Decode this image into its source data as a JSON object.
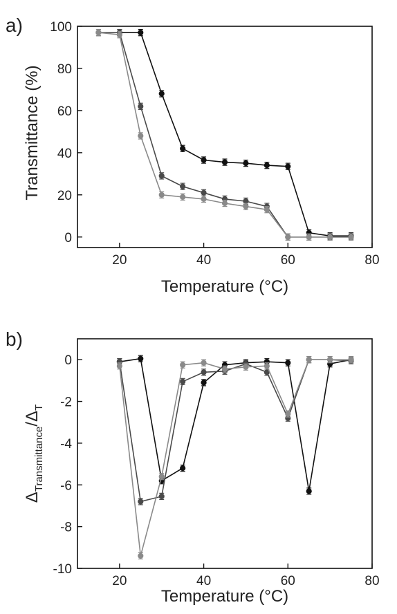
{
  "chart_data": [
    {
      "panel": "a)",
      "type": "line",
      "xlabel": "Temperature (°C)",
      "ylabel": "Transmittance (%)",
      "xlim": [
        10,
        80
      ],
      "ylim": [
        -5,
        100
      ],
      "xticks": [
        20,
        40,
        60,
        80
      ],
      "yticks": [
        0,
        20,
        40,
        60,
        80,
        100
      ],
      "x": [
        15,
        20,
        25,
        30,
        35,
        40,
        45,
        50,
        55,
        60,
        65,
        70,
        75
      ],
      "grid": false,
      "legend": "none",
      "series": [
        {
          "color": "#111111",
          "x": [
            20,
            25,
            30,
            35,
            40,
            45,
            50,
            55,
            60,
            65,
            70,
            75
          ],
          "values": [
            97,
            97,
            68,
            42,
            36.5,
            35.5,
            35,
            34,
            33.5,
            2,
            0.5,
            0.5
          ],
          "err": [
            1.5,
            1.5,
            1.5,
            1.5,
            1.5,
            1.5,
            1.5,
            1.5,
            1.5,
            1.5,
            1.5,
            1.5
          ]
        },
        {
          "color": "#4a4a4a",
          "x": [
            15,
            20,
            25,
            30,
            35,
            40,
            45,
            50,
            55,
            60,
            65,
            70,
            75
          ],
          "values": [
            97,
            97,
            62,
            29,
            24,
            21,
            18,
            17,
            14.5,
            0,
            0,
            0,
            0
          ],
          "err": [
            1.5,
            1.5,
            1.5,
            1.5,
            1.5,
            1.5,
            1.5,
            1.5,
            1.5,
            1.5,
            1.5,
            1.5,
            1.5
          ]
        },
        {
          "color": "#8a8a8a",
          "x": [
            15,
            20,
            25,
            30,
            35,
            40,
            45,
            50,
            55,
            60,
            65,
            70,
            75
          ],
          "values": [
            97,
            96,
            48,
            20,
            19,
            18,
            16,
            14.5,
            13,
            0,
            0,
            0,
            0
          ],
          "err": [
            1.5,
            1.5,
            1.5,
            1.5,
            1.5,
            1.5,
            1.5,
            1.5,
            1.5,
            1.5,
            1.5,
            1.5,
            1.5
          ]
        }
      ]
    },
    {
      "panel": "b)",
      "type": "line",
      "xlabel": "Temperature (°C)",
      "ylabel_main": "Δ",
      "ylabel_sub1": "Transmittance",
      "ylabel_mid": "/Δ",
      "ylabel_sub2": "T",
      "xlim": [
        10,
        80
      ],
      "ylim": [
        -10,
        1
      ],
      "xticks": [
        20,
        40,
        60,
        80
      ],
      "yticks": [
        0,
        -2,
        -4,
        -6,
        -8,
        -10
      ],
      "grid": false,
      "legend": "none",
      "series": [
        {
          "color": "#111111",
          "x": [
            20,
            25,
            30,
            35,
            40,
            45,
            50,
            55,
            60,
            65,
            70,
            75
          ],
          "values": [
            -0.1,
            0.05,
            -5.8,
            -5.2,
            -1.1,
            -0.25,
            -0.15,
            -0.1,
            -0.15,
            -6.3,
            -0.2,
            0
          ],
          "err": [
            0.15,
            0.15,
            0.15,
            0.15,
            0.15,
            0.15,
            0.15,
            0.15,
            0.15,
            0.15,
            0.15,
            0.15
          ]
        },
        {
          "color": "#4a4a4a",
          "x": [
            20,
            25,
            30,
            35,
            40,
            45,
            50,
            55,
            60,
            65,
            70,
            75
          ],
          "values": [
            -0.1,
            -6.8,
            -6.55,
            -1.05,
            -0.6,
            -0.55,
            -0.2,
            -0.6,
            -2.8,
            0,
            0,
            -0.05
          ],
          "err": [
            0.15,
            0.15,
            0.15,
            0.15,
            0.15,
            0.15,
            0.15,
            0.15,
            0.15,
            0.15,
            0.15,
            0.15
          ]
        },
        {
          "color": "#8a8a8a",
          "x": [
            20,
            25,
            30,
            35,
            40,
            45,
            50,
            55,
            60,
            65,
            70,
            75
          ],
          "values": [
            -0.3,
            -9.4,
            -5.6,
            -0.25,
            -0.15,
            -0.45,
            -0.35,
            -0.3,
            -2.6,
            0,
            0,
            0
          ],
          "err": [
            0.15,
            0.15,
            0.15,
            0.15,
            0.15,
            0.15,
            0.15,
            0.15,
            0.15,
            0.15,
            0.15,
            0.15
          ]
        }
      ]
    }
  ]
}
